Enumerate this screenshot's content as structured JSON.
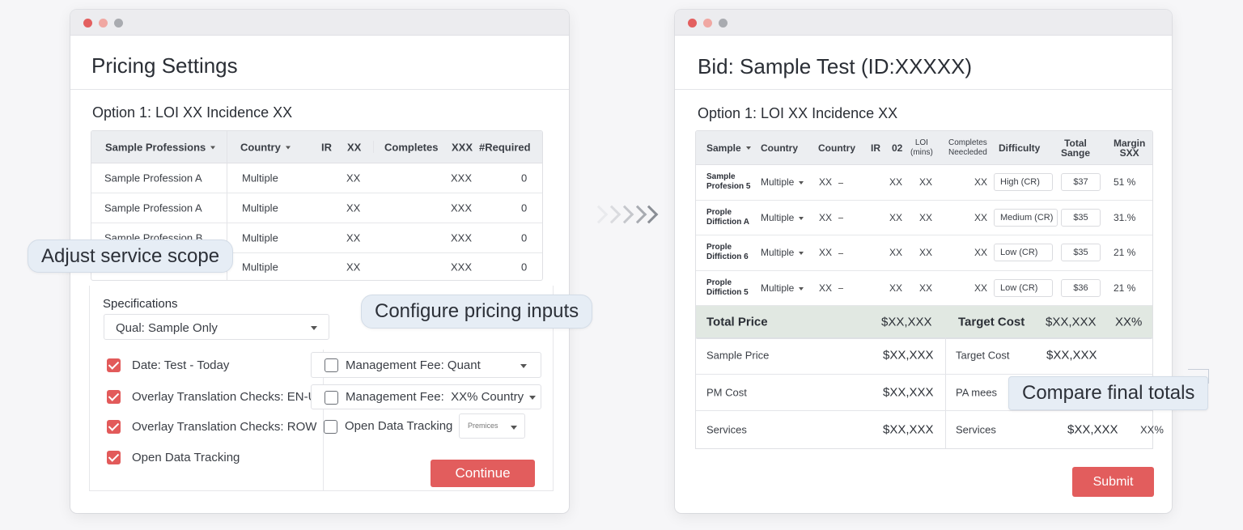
{
  "pricing": {
    "title": "Pricing Settings",
    "option": "Option 1: LOI XX Incidence XX",
    "headers": [
      "Sample Professions",
      "Country",
      "IR",
      "XX",
      "Completes",
      "XXX",
      "#Required"
    ],
    "rows": [
      {
        "profession": "Sample Profession A",
        "country": "Multiple",
        "xx": "XX",
        "xxx": "XXX",
        "required": "0"
      },
      {
        "profession": "Sample Profession A",
        "country": "Multiple",
        "xx": "XX",
        "xxx": "XXX",
        "required": "0"
      },
      {
        "profession": "Sample Profession B",
        "country": "Multiple",
        "xx": "XX",
        "xxx": "XXX",
        "required": "0"
      },
      {
        "profession": "",
        "country": "Multiple",
        "xx": "XX",
        "xxx": "XXX",
        "required": "0"
      }
    ],
    "specifications_label": "Specifications",
    "spec_select": "Qual: Sample Only",
    "checks_left": [
      "Date: Test - Today",
      "Overlay Translation Checks: EN-US",
      "Overlay Translation Checks: ROW",
      "Open Data Tracking"
    ],
    "checks_right": [
      "Management Fee: Quant",
      "Management Fee:  XX% Country",
      "Open Data Tracking"
    ],
    "premium_select": "Premices",
    "continue_label": "Continue"
  },
  "bid": {
    "title": "Bid: Sample Test (ID:XXXXX)",
    "option": "Option 1: LOI XX Incidence XX",
    "headers": {
      "sample": "Sample",
      "country1": "Country",
      "country2": "Country",
      "ir": "IR",
      "col02": "02",
      "loi": "LOI",
      "loi_unit": "(mins)",
      "completes": "Completes",
      "completes2": "Neecleded",
      "difficulty": "Difficulty",
      "total": "Total",
      "total2": "Sange",
      "margin": "Margin",
      "margin2": "SXX"
    },
    "rows": [
      {
        "name1": "Sample",
        "name2": "Profesion 5",
        "country": "Multiple",
        "xx1": "XX",
        "xx2": "XX",
        "xx3": "XX",
        "xx4": "XX",
        "difficulty": "High (CR)",
        "price": "$37",
        "margin": "51 %"
      },
      {
        "name1": "Prople",
        "name2": "Diffiction A",
        "country": "Multiple",
        "xx1": "XX",
        "xx2": "XX",
        "xx3": "XX",
        "xx4": "XX",
        "difficulty": "Medium (CR)",
        "price": "$35",
        "margin": "31.%"
      },
      {
        "name1": "Prople",
        "name2": "Diffiction 6",
        "country": "Multiple",
        "xx1": "XX",
        "xx2": "XX",
        "xx3": "XX",
        "xx4": "XX",
        "difficulty": "Low (CR)",
        "price": "$35",
        "margin": "21 %"
      },
      {
        "name1": "Prople",
        "name2": "Diffiction 5",
        "country": "Multiple",
        "xx1": "XX",
        "xx2": "XX",
        "xx3": "XX",
        "xx4": "XX",
        "difficulty": "Low (CR)",
        "price": "$36",
        "margin": "21 %"
      }
    ],
    "total": {
      "label": "Total Price",
      "value": "$XX,XXX",
      "target_label": "Target Cost",
      "target_value": "$XX,XXX",
      "pct": "XX%"
    },
    "summary": [
      {
        "label": "Sample Price",
        "value": "$XX,XXX",
        "label2": "Target Cost",
        "value2": "$XX,XXX",
        "pct": ""
      },
      {
        "label": "PM Cost",
        "value": "$XX,XXX",
        "label2": "PA mees",
        "value2": "",
        "pct": ""
      },
      {
        "label": "Services",
        "value": "$XX,XXX",
        "label2": "Services",
        "value2": "$XX,XXX",
        "pct": "XX%"
      }
    ],
    "submit_label": "Submit"
  },
  "callouts": {
    "scope": "Adjust service scope",
    "inputs": "Configure pricing inputs",
    "totals": "Compare final totals"
  },
  "colors": {
    "accent": "#e25d5d",
    "callout_bg": "#e6edf5",
    "total_row": "#e1e8e2"
  }
}
